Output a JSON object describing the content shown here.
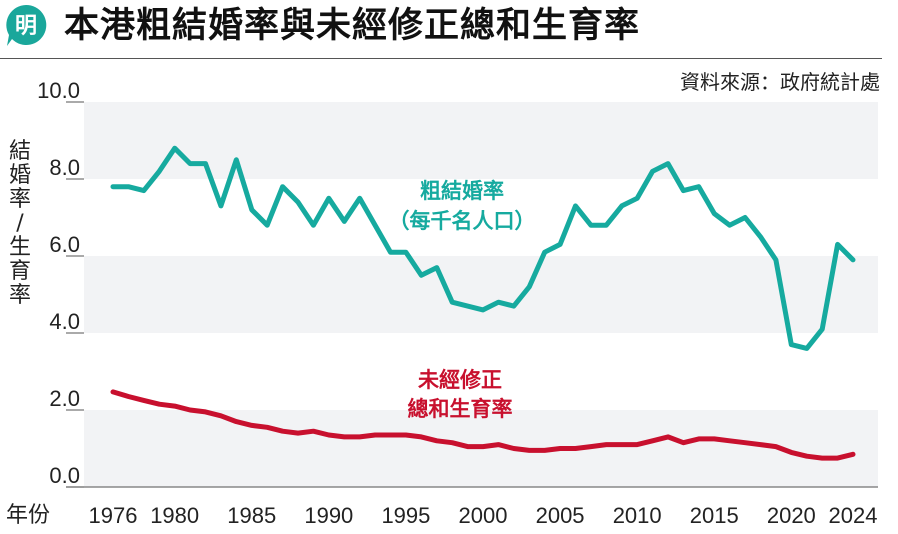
{
  "header": {
    "logo_char": "明",
    "title": "本港粗結婚率與未經修正總和生育率",
    "source": "資料來源：政府統計處"
  },
  "colors": {
    "brand": "#1aa79b",
    "marriage": "#16aa9f",
    "fertility": "#c8102e",
    "band": "#f2f3f5"
  },
  "chart_data": {
    "type": "line",
    "title": "本港粗結婚率與未經修正總和生育率",
    "xlabel": "年份",
    "ylabel": "結婚率／生育率",
    "ylim": [
      0,
      10
    ],
    "yticks": [
      "0.0",
      "2.0",
      "4.0",
      "6.0",
      "8.0",
      "10.0"
    ],
    "xticks": [
      "1976",
      "1980",
      "1985",
      "1990",
      "1995",
      "2000",
      "2005",
      "2010",
      "2015",
      "2020",
      "2024"
    ],
    "x": [
      1976,
      1977,
      1978,
      1979,
      1980,
      1981,
      1982,
      1983,
      1984,
      1985,
      1986,
      1987,
      1988,
      1989,
      1990,
      1991,
      1992,
      1993,
      1994,
      1995,
      1996,
      1997,
      1998,
      1999,
      2000,
      2001,
      2002,
      2003,
      2004,
      2005,
      2006,
      2007,
      2008,
      2009,
      2010,
      2011,
      2012,
      2013,
      2014,
      2015,
      2016,
      2017,
      2018,
      2019,
      2020,
      2021,
      2022,
      2023,
      2024
    ],
    "series": [
      {
        "name": "粗結婚率（每千名人口）",
        "label_lines": [
          "粗結婚率",
          "（每千名人口）"
        ],
        "values": [
          7.8,
          7.8,
          7.7,
          8.2,
          8.8,
          8.4,
          8.4,
          7.3,
          8.5,
          7.2,
          6.8,
          7.8,
          7.4,
          6.8,
          7.5,
          6.9,
          7.5,
          6.8,
          6.1,
          6.1,
          5.5,
          5.7,
          4.8,
          4.7,
          4.6,
          4.8,
          4.7,
          5.2,
          6.1,
          6.3,
          7.3,
          6.8,
          6.8,
          7.3,
          7.5,
          8.2,
          8.4,
          7.7,
          7.8,
          7.1,
          6.8,
          7.0,
          6.5,
          5.9,
          3.7,
          3.6,
          4.1,
          6.3,
          5.9
        ]
      },
      {
        "name": "未經修正總和生育率",
        "label_lines": [
          "未經修正",
          "總和生育率"
        ],
        "values": [
          2.47,
          2.35,
          2.25,
          2.15,
          2.1,
          2.0,
          1.95,
          1.85,
          1.7,
          1.6,
          1.55,
          1.45,
          1.4,
          1.45,
          1.35,
          1.3,
          1.3,
          1.35,
          1.35,
          1.35,
          1.3,
          1.2,
          1.15,
          1.05,
          1.05,
          1.1,
          1.0,
          0.95,
          0.95,
          1.0,
          1.0,
          1.05,
          1.1,
          1.1,
          1.1,
          1.2,
          1.3,
          1.15,
          1.25,
          1.25,
          1.2,
          1.15,
          1.1,
          1.05,
          0.9,
          0.8,
          0.75,
          0.75,
          0.85
        ]
      }
    ],
    "grid": "alternating horizontal bands",
    "legend": "inline labels"
  }
}
